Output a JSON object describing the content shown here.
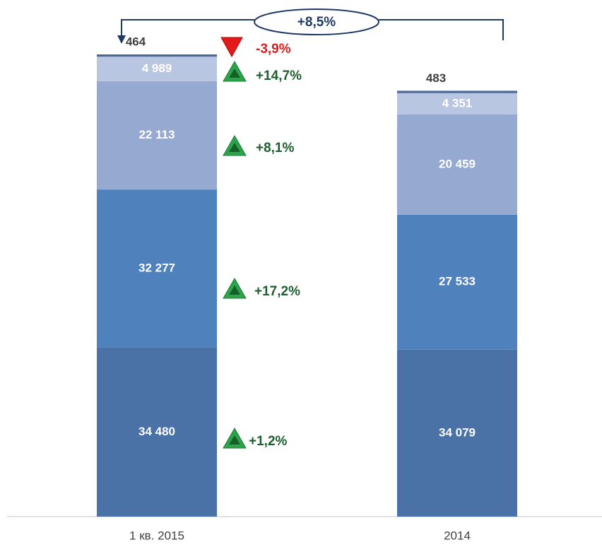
{
  "chart_data": {
    "type": "stacked_bar",
    "categories": [
      "1 кв. 2015",
      "2014"
    ],
    "series": [
      {
        "color": "#4a72a6",
        "values": [
          34480,
          34079
        ],
        "value_labels": [
          "34 480",
          "34 079"
        ]
      },
      {
        "color": "#4f81bd",
        "values": [
          32277,
          27533
        ],
        "value_labels": [
          "32 277",
          "27 533"
        ]
      },
      {
        "color": "#95a9d1",
        "values": [
          22113,
          20459
        ],
        "value_labels": [
          "22 113",
          "20 459"
        ]
      },
      {
        "color": "#b9c6e2",
        "values": [
          4989,
          4351
        ],
        "value_labels": [
          "4 989",
          "4 351"
        ]
      },
      {
        "color": "#4a6a9c",
        "values": [
          464,
          483
        ]
      }
    ],
    "annotations": [
      "+8,5%",
      "-3,9%",
      "+14,7%",
      "+8,1%",
      "+17,2%",
      "+1,2%"
    ]
  }
}
